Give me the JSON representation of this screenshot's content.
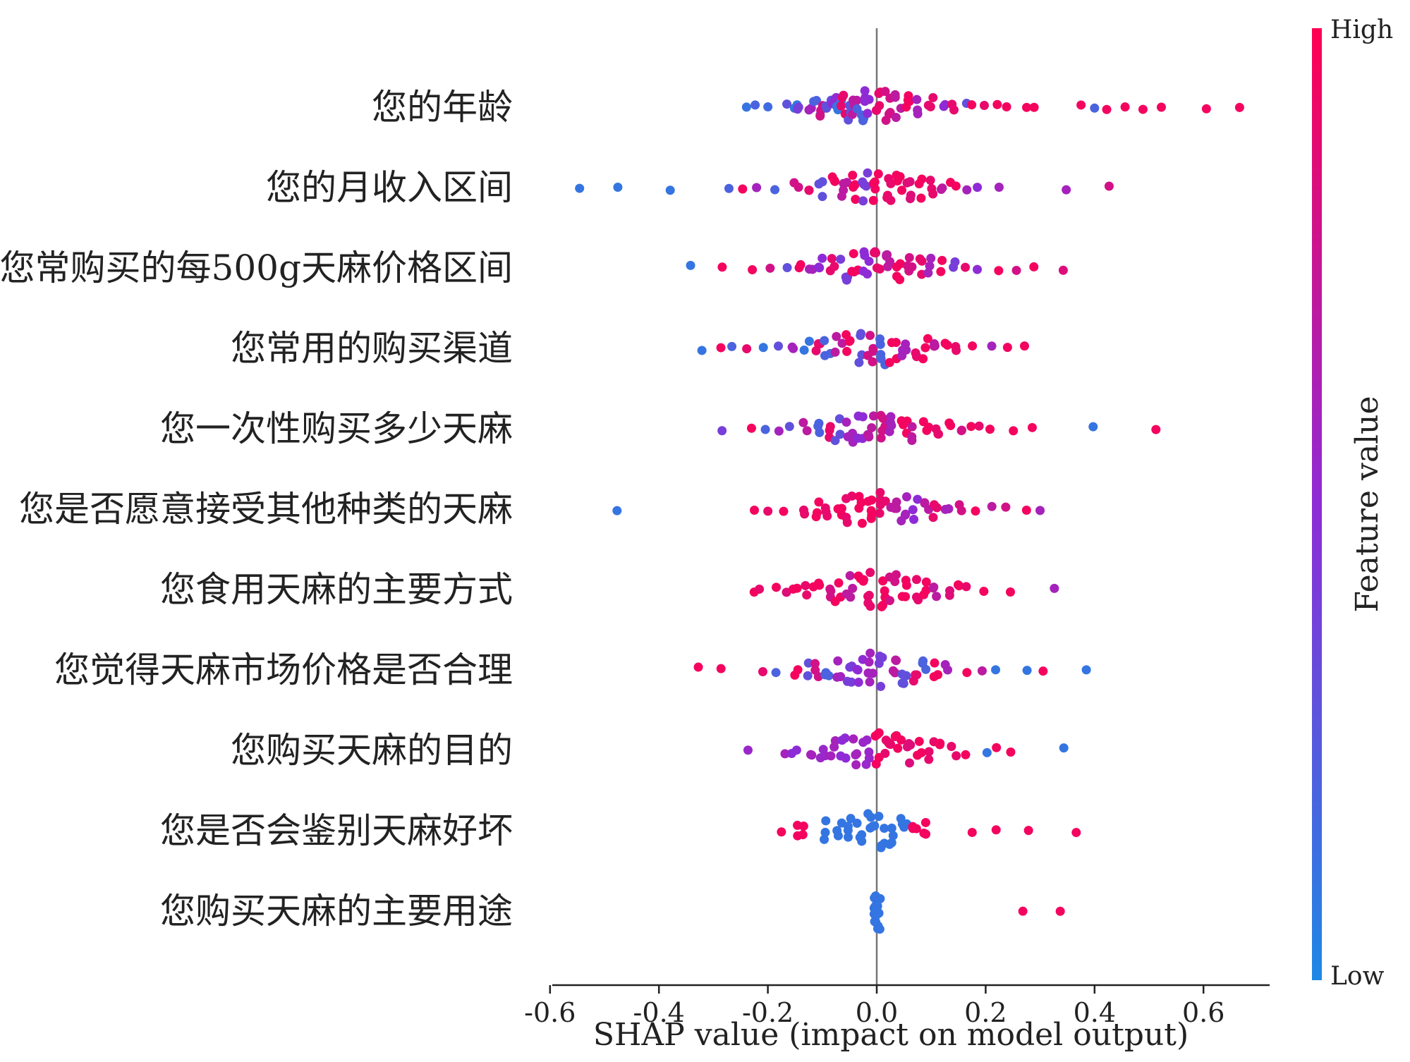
{
  "chart_data": {
    "type": "scatter",
    "subtype": "shap-beeswarm",
    "xlabel": "SHAP value (impact on model output)",
    "xlim": [
      -0.62,
      0.72
    ],
    "xticks": [
      -0.6,
      -0.4,
      -0.2,
      0.0,
      0.2,
      0.4,
      0.6
    ],
    "xtick_labels": [
      "-0.6",
      "-0.4",
      "-0.2",
      "0.0",
      "0.2",
      "0.4",
      "0.6"
    ],
    "zero_line": 0.0,
    "colorbar": {
      "title": "Feature value",
      "high_label": "High",
      "low_label": "Low",
      "high_color": "#ff0052",
      "mid_color": "#8e2bd6",
      "low_color": "#1e88e5"
    },
    "features": [
      {
        "name": "您的年龄",
        "points": [
          {
            "x": -0.24,
            "c": 0.1
          },
          {
            "x": -0.22,
            "c": 0.2
          },
          {
            "x": -0.2,
            "c": 0.15
          },
          {
            "x": -0.17,
            "c": 0.3
          },
          {
            "x": -0.15,
            "c": 0.1
          },
          {
            "x": -0.14,
            "c": 0.4
          },
          {
            "x": -0.12,
            "c": 0.6
          },
          {
            "x": -0.11,
            "c": 0.2
          },
          {
            "x": -0.1,
            "c": 0.8
          },
          {
            "x": -0.09,
            "c": 0.3
          },
          {
            "x": -0.08,
            "c": 0.5
          },
          {
            "x": -0.07,
            "c": 0.1
          },
          {
            "x": -0.06,
            "c": 0.9
          },
          {
            "x": -0.05,
            "c": 0.3
          },
          {
            "x": -0.04,
            "c": 0.7
          },
          {
            "x": -0.03,
            "c": 0.2
          },
          {
            "x": -0.02,
            "c": 0.5
          },
          {
            "x": 0.0,
            "c": 0.9
          },
          {
            "x": 0.02,
            "c": 0.8
          },
          {
            "x": 0.04,
            "c": 0.7
          },
          {
            "x": 0.06,
            "c": 0.95
          },
          {
            "x": 0.08,
            "c": 0.6
          },
          {
            "x": 0.1,
            "c": 0.9
          },
          {
            "x": 0.12,
            "c": 0.5
          },
          {
            "x": 0.14,
            "c": 0.9
          },
          {
            "x": 0.16,
            "c": 0.3
          },
          {
            "x": 0.18,
            "c": 0.95
          },
          {
            "x": 0.2,
            "c": 0.9
          },
          {
            "x": 0.22,
            "c": 0.95
          },
          {
            "x": 0.24,
            "c": 0.95
          },
          {
            "x": 0.27,
            "c": 0.95
          },
          {
            "x": 0.29,
            "c": 0.95
          },
          {
            "x": 0.37,
            "c": 0.95
          },
          {
            "x": 0.4,
            "c": 0.2
          },
          {
            "x": 0.42,
            "c": 0.95
          },
          {
            "x": 0.45,
            "c": 0.95
          },
          {
            "x": 0.49,
            "c": 0.95
          },
          {
            "x": 0.52,
            "c": 0.95
          },
          {
            "x": 0.6,
            "c": 0.95
          },
          {
            "x": 0.66,
            "c": 0.95
          }
        ]
      },
      {
        "name": "您的月收入区间",
        "points": [
          {
            "x": -0.55,
            "c": 0.1
          },
          {
            "x": -0.47,
            "c": 0.1
          },
          {
            "x": -0.38,
            "c": 0.1
          },
          {
            "x": -0.27,
            "c": 0.2
          },
          {
            "x": -0.25,
            "c": 0.95
          },
          {
            "x": -0.22,
            "c": 0.6
          },
          {
            "x": -0.19,
            "c": 0.2
          },
          {
            "x": -0.15,
            "c": 0.8
          },
          {
            "x": -0.12,
            "c": 0.9
          },
          {
            "x": -0.1,
            "c": 0.3
          },
          {
            "x": -0.08,
            "c": 0.95
          },
          {
            "x": -0.06,
            "c": 0.7
          },
          {
            "x": -0.04,
            "c": 0.95
          },
          {
            "x": -0.02,
            "c": 0.4
          },
          {
            "x": 0.0,
            "c": 0.95
          },
          {
            "x": 0.02,
            "c": 0.9
          },
          {
            "x": 0.04,
            "c": 0.95
          },
          {
            "x": 0.06,
            "c": 0.85
          },
          {
            "x": 0.08,
            "c": 0.95
          },
          {
            "x": 0.1,
            "c": 0.9
          },
          {
            "x": 0.12,
            "c": 0.7
          },
          {
            "x": 0.14,
            "c": 0.95
          },
          {
            "x": 0.16,
            "c": 0.6
          },
          {
            "x": 0.18,
            "c": 0.5
          },
          {
            "x": 0.23,
            "c": 0.6
          },
          {
            "x": 0.35,
            "c": 0.6
          },
          {
            "x": 0.43,
            "c": 0.8
          }
        ]
      },
      {
        "name": "您常购买的每500g天麻价格区间",
        "points": [
          {
            "x": -0.34,
            "c": 0.1
          },
          {
            "x": -0.29,
            "c": 0.95
          },
          {
            "x": -0.23,
            "c": 0.95
          },
          {
            "x": -0.19,
            "c": 0.8
          },
          {
            "x": -0.16,
            "c": 0.3
          },
          {
            "x": -0.14,
            "c": 0.95
          },
          {
            "x": -0.12,
            "c": 0.6
          },
          {
            "x": -0.1,
            "c": 0.5
          },
          {
            "x": -0.08,
            "c": 0.9
          },
          {
            "x": -0.06,
            "c": 0.4
          },
          {
            "x": -0.04,
            "c": 0.95
          },
          {
            "x": -0.02,
            "c": 0.5
          },
          {
            "x": 0.0,
            "c": 0.9
          },
          {
            "x": 0.02,
            "c": 0.7
          },
          {
            "x": 0.04,
            "c": 0.95
          },
          {
            "x": 0.06,
            "c": 0.8
          },
          {
            "x": 0.08,
            "c": 0.9
          },
          {
            "x": 0.1,
            "c": 0.6
          },
          {
            "x": 0.12,
            "c": 0.95
          },
          {
            "x": 0.14,
            "c": 0.4
          },
          {
            "x": 0.16,
            "c": 0.9
          },
          {
            "x": 0.19,
            "c": 0.5
          },
          {
            "x": 0.22,
            "c": 0.95
          },
          {
            "x": 0.26,
            "c": 0.8
          },
          {
            "x": 0.29,
            "c": 0.95
          },
          {
            "x": 0.34,
            "c": 0.85
          }
        ]
      },
      {
        "name": "您常用的购买渠道",
        "points": [
          {
            "x": -0.32,
            "c": 0.1
          },
          {
            "x": -0.29,
            "c": 0.95
          },
          {
            "x": -0.27,
            "c": 0.2
          },
          {
            "x": -0.24,
            "c": 0.9
          },
          {
            "x": -0.21,
            "c": 0.1
          },
          {
            "x": -0.18,
            "c": 0.3
          },
          {
            "x": -0.15,
            "c": 0.6
          },
          {
            "x": -0.13,
            "c": 0.1
          },
          {
            "x": -0.11,
            "c": 0.9
          },
          {
            "x": -0.09,
            "c": 0.2
          },
          {
            "x": -0.07,
            "c": 0.7
          },
          {
            "x": -0.05,
            "c": 0.95
          },
          {
            "x": -0.03,
            "c": 0.3
          },
          {
            "x": -0.01,
            "c": 0.8
          },
          {
            "x": 0.01,
            "c": 0.2
          },
          {
            "x": 0.03,
            "c": 0.95
          },
          {
            "x": 0.05,
            "c": 0.6
          },
          {
            "x": 0.07,
            "c": 0.9
          },
          {
            "x": 0.09,
            "c": 0.95
          },
          {
            "x": 0.11,
            "c": 0.7
          },
          {
            "x": 0.13,
            "c": 0.95
          },
          {
            "x": 0.15,
            "c": 0.9
          },
          {
            "x": 0.18,
            "c": 0.95
          },
          {
            "x": 0.21,
            "c": 0.6
          },
          {
            "x": 0.24,
            "c": 0.95
          },
          {
            "x": 0.27,
            "c": 0.95
          }
        ]
      },
      {
        "name": "您一次性购买多少天麻",
        "points": [
          {
            "x": -0.29,
            "c": 0.4
          },
          {
            "x": -0.23,
            "c": 0.95
          },
          {
            "x": -0.2,
            "c": 0.2
          },
          {
            "x": -0.18,
            "c": 0.6
          },
          {
            "x": -0.16,
            "c": 0.3
          },
          {
            "x": -0.13,
            "c": 0.7
          },
          {
            "x": -0.11,
            "c": 0.2
          },
          {
            "x": -0.09,
            "c": 0.9
          },
          {
            "x": -0.07,
            "c": 0.3
          },
          {
            "x": -0.05,
            "c": 0.6
          },
          {
            "x": -0.03,
            "c": 0.5
          },
          {
            "x": -0.01,
            "c": 0.7
          },
          {
            "x": 0.01,
            "c": 0.8
          },
          {
            "x": 0.03,
            "c": 0.6
          },
          {
            "x": 0.05,
            "c": 0.95
          },
          {
            "x": 0.07,
            "c": 0.7
          },
          {
            "x": 0.09,
            "c": 0.95
          },
          {
            "x": 0.11,
            "c": 0.9
          },
          {
            "x": 0.13,
            "c": 0.95
          },
          {
            "x": 0.15,
            "c": 0.8
          },
          {
            "x": 0.17,
            "c": 0.95
          },
          {
            "x": 0.19,
            "c": 0.9
          },
          {
            "x": 0.21,
            "c": 0.95
          },
          {
            "x": 0.25,
            "c": 0.95
          },
          {
            "x": 0.29,
            "c": 0.95
          },
          {
            "x": 0.4,
            "c": 0.1
          },
          {
            "x": 0.51,
            "c": 0.95
          }
        ]
      },
      {
        "name": "您是否愿意接受其他种类的天麻",
        "points": [
          {
            "x": -0.48,
            "c": 0.1
          },
          {
            "x": -0.22,
            "c": 0.95
          },
          {
            "x": -0.2,
            "c": 0.9
          },
          {
            "x": -0.17,
            "c": 0.95
          },
          {
            "x": -0.13,
            "c": 0.9
          },
          {
            "x": -0.11,
            "c": 0.95
          },
          {
            "x": -0.09,
            "c": 0.9
          },
          {
            "x": -0.07,
            "c": 0.95
          },
          {
            "x": -0.05,
            "c": 0.9
          },
          {
            "x": -0.03,
            "c": 0.95
          },
          {
            "x": -0.01,
            "c": 0.95
          },
          {
            "x": 0.01,
            "c": 0.9
          },
          {
            "x": 0.03,
            "c": 0.7
          },
          {
            "x": 0.05,
            "c": 0.6
          },
          {
            "x": 0.07,
            "c": 0.5
          },
          {
            "x": 0.09,
            "c": 0.7
          },
          {
            "x": 0.11,
            "c": 0.9
          },
          {
            "x": 0.13,
            "c": 0.6
          },
          {
            "x": 0.15,
            "c": 0.8
          },
          {
            "x": 0.18,
            "c": 0.95
          },
          {
            "x": 0.21,
            "c": 0.7
          },
          {
            "x": 0.24,
            "c": 0.8
          },
          {
            "x": 0.28,
            "c": 0.95
          },
          {
            "x": 0.3,
            "c": 0.6
          }
        ]
      },
      {
        "name": "您食用天麻的主要方式",
        "points": [
          {
            "x": -0.23,
            "c": 0.95
          },
          {
            "x": -0.21,
            "c": 0.9
          },
          {
            "x": -0.19,
            "c": 0.95
          },
          {
            "x": -0.17,
            "c": 0.85
          },
          {
            "x": -0.15,
            "c": 0.95
          },
          {
            "x": -0.13,
            "c": 0.9
          },
          {
            "x": -0.11,
            "c": 0.95
          },
          {
            "x": -0.09,
            "c": 0.8
          },
          {
            "x": -0.07,
            "c": 0.95
          },
          {
            "x": -0.05,
            "c": 0.7
          },
          {
            "x": -0.03,
            "c": 0.95
          },
          {
            "x": -0.01,
            "c": 0.9
          },
          {
            "x": 0.01,
            "c": 0.95
          },
          {
            "x": 0.03,
            "c": 0.8
          },
          {
            "x": 0.05,
            "c": 0.95
          },
          {
            "x": 0.07,
            "c": 0.9
          },
          {
            "x": 0.09,
            "c": 0.95
          },
          {
            "x": 0.11,
            "c": 0.7
          },
          {
            "x": 0.13,
            "c": 0.85
          },
          {
            "x": 0.15,
            "c": 0.95
          },
          {
            "x": 0.17,
            "c": 0.9
          },
          {
            "x": 0.2,
            "c": 0.95
          },
          {
            "x": 0.25,
            "c": 0.95
          },
          {
            "x": 0.33,
            "c": 0.6
          }
        ]
      },
      {
        "name": "您觉得天麻市场价格是否合理",
        "points": [
          {
            "x": -0.33,
            "c": 0.95
          },
          {
            "x": -0.29,
            "c": 0.95
          },
          {
            "x": -0.21,
            "c": 0.9
          },
          {
            "x": -0.18,
            "c": 0.2
          },
          {
            "x": -0.15,
            "c": 0.95
          },
          {
            "x": -0.13,
            "c": 0.3
          },
          {
            "x": -0.11,
            "c": 0.8
          },
          {
            "x": -0.09,
            "c": 0.2
          },
          {
            "x": -0.07,
            "c": 0.6
          },
          {
            "x": -0.05,
            "c": 0.4
          },
          {
            "x": -0.03,
            "c": 0.5
          },
          {
            "x": -0.01,
            "c": 0.6
          },
          {
            "x": 0.01,
            "c": 0.4
          },
          {
            "x": 0.03,
            "c": 0.7
          },
          {
            "x": 0.05,
            "c": 0.3
          },
          {
            "x": 0.07,
            "c": 0.9
          },
          {
            "x": 0.09,
            "c": 0.2
          },
          {
            "x": 0.11,
            "c": 0.95
          },
          {
            "x": 0.13,
            "c": 0.6
          },
          {
            "x": 0.16,
            "c": 0.95
          },
          {
            "x": 0.2,
            "c": 0.7
          },
          {
            "x": 0.22,
            "c": 0.1
          },
          {
            "x": 0.28,
            "c": 0.1
          },
          {
            "x": 0.3,
            "c": 0.95
          },
          {
            "x": 0.39,
            "c": 0.1
          }
        ]
      },
      {
        "name": "您购买天麻的目的",
        "points": [
          {
            "x": -0.24,
            "c": 0.55
          },
          {
            "x": -0.17,
            "c": 0.6
          },
          {
            "x": -0.15,
            "c": 0.5
          },
          {
            "x": -0.12,
            "c": 0.6
          },
          {
            "x": -0.1,
            "c": 0.55
          },
          {
            "x": -0.08,
            "c": 0.6
          },
          {
            "x": -0.06,
            "c": 0.5
          },
          {
            "x": -0.04,
            "c": 0.6
          },
          {
            "x": -0.02,
            "c": 0.55
          },
          {
            "x": 0.0,
            "c": 0.95
          },
          {
            "x": 0.02,
            "c": 0.9
          },
          {
            "x": 0.04,
            "c": 0.95
          },
          {
            "x": 0.06,
            "c": 0.85
          },
          {
            "x": 0.08,
            "c": 0.95
          },
          {
            "x": 0.1,
            "c": 0.9
          },
          {
            "x": 0.12,
            "c": 0.95
          },
          {
            "x": 0.14,
            "c": 0.9
          },
          {
            "x": 0.16,
            "c": 0.95
          },
          {
            "x": 0.2,
            "c": 0.1
          },
          {
            "x": 0.22,
            "c": 0.95
          },
          {
            "x": 0.25,
            "c": 0.95
          },
          {
            "x": 0.34,
            "c": 0.1
          }
        ]
      },
      {
        "name": "您是否会鉴别天麻好坏",
        "points": [
          {
            "x": -0.17,
            "c": 0.95
          },
          {
            "x": -0.15,
            "c": 0.95
          },
          {
            "x": -0.13,
            "c": 0.95
          },
          {
            "x": -0.09,
            "c": 0.1
          },
          {
            "x": -0.07,
            "c": 0.1
          },
          {
            "x": -0.05,
            "c": 0.1
          },
          {
            "x": -0.03,
            "c": 0.1
          },
          {
            "x": -0.01,
            "c": 0.1
          },
          {
            "x": 0.01,
            "c": 0.1
          },
          {
            "x": 0.03,
            "c": 0.1
          },
          {
            "x": 0.05,
            "c": 0.1
          },
          {
            "x": 0.07,
            "c": 0.95
          },
          {
            "x": 0.09,
            "c": 0.95
          },
          {
            "x": 0.18,
            "c": 0.95
          },
          {
            "x": 0.22,
            "c": 0.95
          },
          {
            "x": 0.28,
            "c": 0.95
          },
          {
            "x": 0.36,
            "c": 0.95
          }
        ]
      },
      {
        "name": "您购买天麻的主要用途",
        "points": [
          {
            "x": 0.0,
            "c": 0.1
          },
          {
            "x": 0.0,
            "c": 0.1
          },
          {
            "x": 0.0,
            "c": 0.1
          },
          {
            "x": 0.0,
            "c": 0.1
          },
          {
            "x": 0.0,
            "c": 0.1
          },
          {
            "x": 0.27,
            "c": 0.95
          },
          {
            "x": 0.34,
            "c": 0.95
          }
        ]
      }
    ]
  }
}
